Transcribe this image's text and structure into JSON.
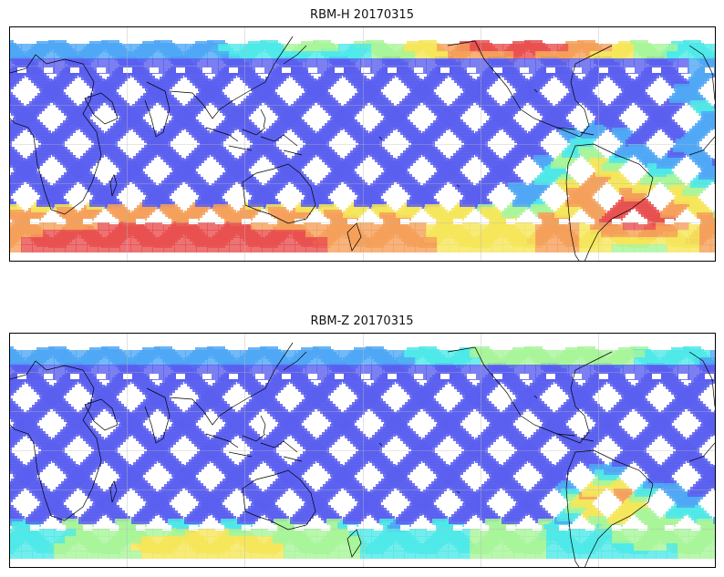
{
  "panels": [
    {
      "title": "RBM-H 20170315",
      "hot_regions": [
        {
          "name": "south-polar-band",
          "level": "high"
        },
        {
          "name": "south-atlantic-tongue",
          "level": "high"
        },
        {
          "name": "north-pacific-band",
          "level": "high"
        }
      ]
    },
    {
      "title": "RBM-Z 20170315",
      "hot_regions": [
        {
          "name": "south-polar-band",
          "level": "low-medium"
        },
        {
          "name": "south-atlantic-anomaly",
          "level": "high"
        }
      ]
    }
  ],
  "colormap": {
    "low": "#5a5ff0",
    "mid_low": "#4fa7f5",
    "mid": "#4fe8e8",
    "mid_high": "#a8f59a",
    "high_yellow": "#f5e65a",
    "high_orange": "#f5a05a",
    "highest": "#e85050"
  },
  "map": {
    "projection": "cylindrical (longitude 0–360)",
    "grid": true,
    "coastlines": true
  }
}
